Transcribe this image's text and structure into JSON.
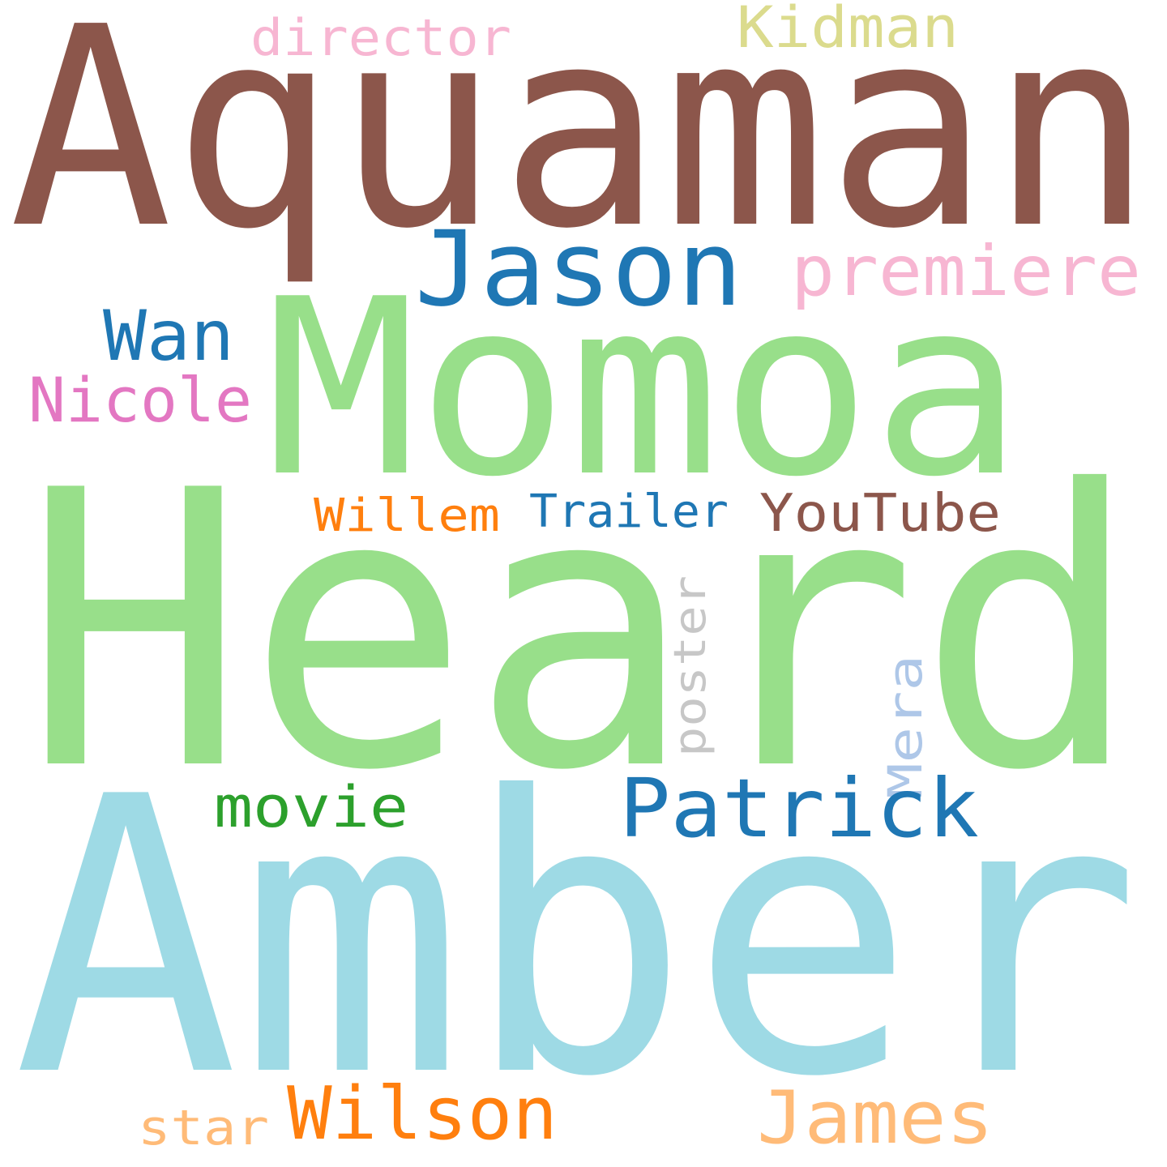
{
  "words": [
    {
      "text": "Aquaman",
      "color": "#8c564b"
    },
    {
      "text": "Heard",
      "color": "#98df8a"
    },
    {
      "text": "Amber",
      "color": "#9edae5"
    },
    {
      "text": "Momoa",
      "color": "#98df8a"
    },
    {
      "text": "Jason",
      "color": "#1f77b4"
    },
    {
      "text": "premiere",
      "color": "#f7b6d2"
    },
    {
      "text": "Wan",
      "color": "#1f77b4"
    },
    {
      "text": "Nicole",
      "color": "#e377c2"
    },
    {
      "text": "director",
      "color": "#f7b6d2"
    },
    {
      "text": "Kidman",
      "color": "#dbdb8d"
    },
    {
      "text": "Willem",
      "color": "#ff7f0e"
    },
    {
      "text": "Trailer",
      "color": "#1f77b4"
    },
    {
      "text": "YouTube",
      "color": "#8c564b"
    },
    {
      "text": "poster",
      "color": "#c7c7c7"
    },
    {
      "text": "Mera",
      "color": "#aec7e8"
    },
    {
      "text": "movie",
      "color": "#2ca02c"
    },
    {
      "text": "Patrick",
      "color": "#1f77b4"
    },
    {
      "text": "Wilson",
      "color": "#ff7f0e"
    },
    {
      "text": "James",
      "color": "#ffbb78"
    },
    {
      "text": "star",
      "color": "#ffbb78"
    }
  ]
}
